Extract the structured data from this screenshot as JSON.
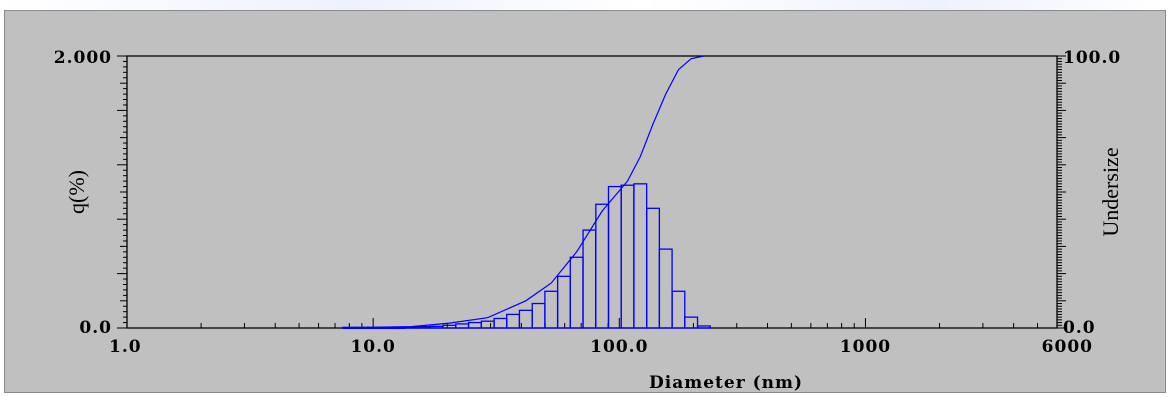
{
  "chart_data": {
    "type": "bar",
    "xscale": "log",
    "xlim": [
      1.0,
      6000
    ],
    "xlabel": "Diameter (nm)",
    "x_ticks": [
      1.0,
      10.0,
      100.0,
      1000,
      6000
    ],
    "x_tick_labels": [
      "1.0",
      "10.0",
      "100.0",
      "1000",
      "6000"
    ],
    "ylabel_left": "q(%)",
    "ylim_left": [
      0.0,
      2.0
    ],
    "left_tick_labels": [
      "0.0",
      "2.000"
    ],
    "ylabel_right": "Undersize",
    "ylim_right": [
      0.0,
      100.0
    ],
    "right_tick_labels": [
      "0.0",
      "100.0"
    ],
    "grid": false,
    "series": [
      {
        "type": "bar",
        "color": "#0000ff",
        "bins": [
          {
            "x": 8.0,
            "q": 0.005
          },
          {
            "x": 9.0,
            "q": 0.005
          },
          {
            "x": 10.0,
            "q": 0.005
          },
          {
            "x": 11.3,
            "q": 0.005
          },
          {
            "x": 12.7,
            "q": 0.005
          },
          {
            "x": 14.3,
            "q": 0.007
          },
          {
            "x": 16.1,
            "q": 0.01
          },
          {
            "x": 18.1,
            "q": 0.012
          },
          {
            "x": 20.4,
            "q": 0.02
          },
          {
            "x": 23.0,
            "q": 0.03
          },
          {
            "x": 25.9,
            "q": 0.04
          },
          {
            "x": 29.2,
            "q": 0.05
          },
          {
            "x": 32.9,
            "q": 0.07
          },
          {
            "x": 37.0,
            "q": 0.1
          },
          {
            "x": 41.7,
            "q": 0.13
          },
          {
            "x": 47.0,
            "q": 0.18
          },
          {
            "x": 52.9,
            "q": 0.27
          },
          {
            "x": 59.6,
            "q": 0.38
          },
          {
            "x": 67.1,
            "q": 0.52
          },
          {
            "x": 75.6,
            "q": 0.72
          },
          {
            "x": 85.2,
            "q": 0.91
          },
          {
            "x": 95.9,
            "q": 1.04
          },
          {
            "x": 108.0,
            "q": 1.05
          },
          {
            "x": 121.7,
            "q": 1.06
          },
          {
            "x": 137.1,
            "q": 0.88
          },
          {
            "x": 154.4,
            "q": 0.58
          },
          {
            "x": 173.9,
            "q": 0.27
          },
          {
            "x": 195.9,
            "q": 0.08
          },
          {
            "x": 220.7,
            "q": 0.015
          }
        ]
      },
      {
        "name": "Undersize",
        "type": "line",
        "color": "#0000ff",
        "axis": "right",
        "x": [
          8.0,
          14.3,
          20.4,
          29.2,
          41.7,
          52.9,
          67.1,
          85.2,
          108.0,
          121.7,
          137.1,
          154.4,
          173.9,
          195.9,
          220.7
        ],
        "y": [
          0.1,
          0.5,
          1.8,
          3.8,
          10.0,
          16.5,
          28.0,
          43.0,
          54.0,
          63.0,
          75.0,
          86.0,
          95.0,
          99.0,
          100.0
        ]
      }
    ]
  }
}
